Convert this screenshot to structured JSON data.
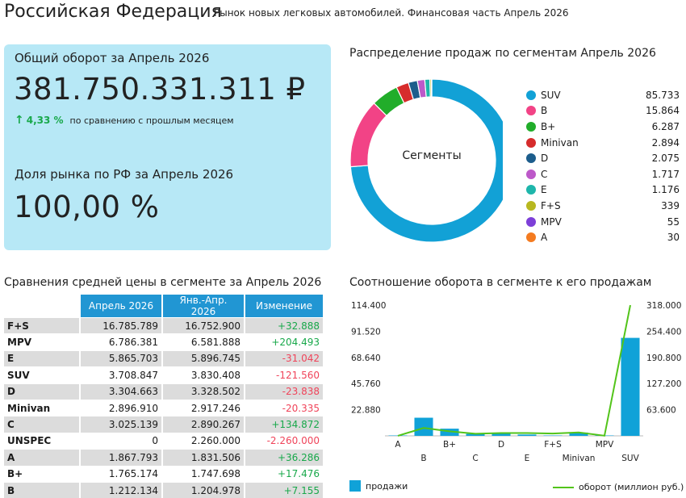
{
  "header": {
    "title": "Российская Федерация",
    "subtitle": "Рынок новых легковых автомобилей. Финансовая часть Апрель 2026"
  },
  "kpi": {
    "turnover_label": "Общий оборот за Апрель 2026",
    "turnover_value": "381.750.331.311 ₽",
    "change_value": "4,33 %",
    "change_note": "по сравнению с прошлым месяцем",
    "share_label": "Доля рынка по РФ за Апрель 2026",
    "share_value": "100,00 %"
  },
  "colors": {
    "card_bg": "#b7e8f6",
    "table_header": "#2196d3",
    "positive": "#18a84a",
    "negative": "#f0445a",
    "bar": "#10a2d8",
    "line": "#52c41a"
  },
  "chart_data": [
    {
      "type": "pie",
      "title": "Распределение продаж по сегментам Апрель 2026",
      "center_label": "Сегменты",
      "donut": true,
      "legend_position": "right",
      "slices": [
        {
          "name": "SUV",
          "label": "85.733",
          "value": 85733,
          "color": "#12a1d6"
        },
        {
          "name": "B",
          "label": "15.864",
          "value": 15864,
          "color": "#f24386"
        },
        {
          "name": "B+",
          "label": "6.287",
          "value": 6287,
          "color": "#21ad2a"
        },
        {
          "name": "Minivan",
          "label": "2.894",
          "value": 2894,
          "color": "#d62c2c"
        },
        {
          "name": "D",
          "label": "2.075",
          "value": 2075,
          "color": "#1c5d8c"
        },
        {
          "name": "C",
          "label": "1.717",
          "value": 1717,
          "color": "#bd59c9"
        },
        {
          "name": "E",
          "label": "1.176",
          "value": 1176,
          "color": "#1eb6ab"
        },
        {
          "name": "F+S",
          "label": "339",
          "value": 339,
          "color": "#b8b820"
        },
        {
          "name": "MPV",
          "label": "55",
          "value": 55,
          "color": "#7d3fd8"
        },
        {
          "name": "A",
          "label": "30",
          "value": 30,
          "color": "#f47b20"
        }
      ]
    },
    {
      "type": "table",
      "title": "Сравнения средней цены в сегменте за Апрель 2026",
      "columns": [
        "",
        "Апрель 2026",
        "Янв.-Апр. 2026",
        "Изменение"
      ],
      "rows": [
        {
          "seg": "F+S",
          "apr": "16.785.789",
          "ytd": "16.752.900",
          "chg": "+32.888",
          "sign": "pos"
        },
        {
          "seg": "MPV",
          "apr": "6.786.381",
          "ytd": "6.581.888",
          "chg": "+204.493",
          "sign": "pos"
        },
        {
          "seg": "E",
          "apr": "5.865.703",
          "ytd": "5.896.745",
          "chg": "-31.042",
          "sign": "neg"
        },
        {
          "seg": "SUV",
          "apr": "3.708.847",
          "ytd": "3.830.408",
          "chg": "-121.560",
          "sign": "neg"
        },
        {
          "seg": "D",
          "apr": "3.304.663",
          "ytd": "3.328.502",
          "chg": "-23.838",
          "sign": "neg"
        },
        {
          "seg": "Minivan",
          "apr": "2.896.910",
          "ytd": "2.917.246",
          "chg": "-20.335",
          "sign": "neg"
        },
        {
          "seg": "C",
          "apr": "3.025.139",
          "ytd": "2.890.267",
          "chg": "+134.872",
          "sign": "pos"
        },
        {
          "seg": "UNSPEC",
          "apr": "0",
          "ytd": "2.260.000",
          "chg": "-2.260.000",
          "sign": "neg"
        },
        {
          "seg": "A",
          "apr": "1.867.793",
          "ytd": "1.831.506",
          "chg": "+36.286",
          "sign": "pos"
        },
        {
          "seg": "B+",
          "apr": "1.765.174",
          "ytd": "1.747.698",
          "chg": "+17.476",
          "sign": "pos"
        },
        {
          "seg": "B",
          "apr": "1.212.134",
          "ytd": "1.204.978",
          "chg": "+7.155",
          "sign": "pos"
        }
      ]
    },
    {
      "type": "bar",
      "title": "Соотношение оборота в сегменте к его продажам",
      "categories": [
        "A",
        "B",
        "B+",
        "C",
        "D",
        "E",
        "F+S",
        "Minivan",
        "MPV",
        "SUV"
      ],
      "series": [
        {
          "name": "продажи",
          "kind": "bar",
          "axis": "left",
          "values": [
            30,
            15864,
            6287,
            1717,
            2075,
            1176,
            339,
            2894,
            55,
            85733
          ]
        },
        {
          "name": "оборот (миллион руб.)",
          "kind": "line",
          "axis": "right",
          "values": [
            56,
            19229,
            11098,
            5194,
            6857,
            6898,
            5690,
            8384,
            373,
            317970
          ]
        }
      ],
      "y_left_ticks": [
        "114.400",
        "91.520",
        "68.640",
        "45.760",
        "22.880"
      ],
      "y_right_ticks": [
        "318.000",
        "254.400",
        "190.800",
        "127.200",
        "63.600"
      ],
      "ylim_left": [
        0,
        114400
      ],
      "ylim_right": [
        0,
        318000
      ],
      "legend_position": "bottom"
    }
  ]
}
